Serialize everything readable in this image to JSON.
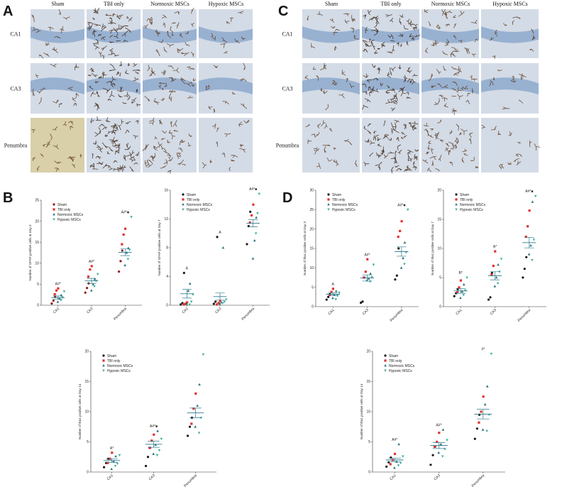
{
  "figure": {
    "panel_labels": [
      "A",
      "B",
      "C",
      "D"
    ],
    "micrographs": [
      {
        "columns": [
          "Sham",
          "TBI only",
          "Normoxic MSCs",
          "Hypoxic MSCs"
        ],
        "rows": [
          "CA1",
          "CA3",
          "Penumbra"
        ]
      },
      {
        "columns": [
          "Sham",
          "TBI only",
          "Normoxic MSCs",
          "Hypoxic MSCs"
        ],
        "rows": [
          "CA1",
          "CA3",
          "Penumbra"
        ]
      }
    ]
  },
  "chart_data": [
    {
      "type": "dotplot",
      "y_label": "Number of GFAP positive cells at Day 3",
      "categories": [
        "CA1",
        "CA3",
        "Penumbra"
      ],
      "ylim": [
        0,
        25
      ],
      "yticks": [
        0,
        5,
        10,
        15,
        20,
        25
      ],
      "legend": "upper left",
      "mean_color": "#2b7a8c",
      "series": [
        {
          "name": "Sham",
          "color": "#8b1a1a",
          "marker": "circle",
          "values": [
            [
              0.4,
              1.1,
              2.0
            ],
            [
              3.0,
              4.1,
              5.2
            ],
            [
              8.0,
              10.5,
              13.0
            ]
          ]
        },
        {
          "name": "TBI only",
          "color": "#e0322f",
          "marker": "square",
          "values": [
            [
              2.6,
              3.5,
              4.0
            ],
            [
              6.8,
              8.5,
              9.3
            ],
            [
              14.5,
              16.8,
              18.2
            ]
          ]
        },
        {
          "name": "Normoxic MSCs",
          "color": "#2e6f7e",
          "marker": "triangle",
          "values": [
            [
              0.8,
              1.6,
              2.4
            ],
            [
              3.5,
              5.0,
              6.2
            ],
            [
              9.5,
              12.5,
              13.6
            ]
          ]
        },
        {
          "name": "Hypoxic MSCs",
          "color": "#3fb0a0",
          "marker": "triangle-down",
          "values": [
            [
              1.2,
              1.9,
              3.3
            ],
            [
              4.5,
              5.8,
              7.4
            ],
            [
              11.0,
              13.2,
              21.0
            ]
          ]
        }
      ],
      "means": [
        1.8,
        5.8,
        12.6
      ],
      "errors": [
        0.4,
        0.6,
        0.8
      ],
      "annotations": [
        "A#*",
        "A#*",
        "A#*■"
      ]
    },
    {
      "type": "dotplot",
      "y_label": "Number of GFAP positive cells at Day 7",
      "categories": [
        "CA1",
        "CA3",
        "Penumbra"
      ],
      "ylim": [
        0,
        16
      ],
      "yticks": [
        0,
        4,
        8,
        12,
        16
      ],
      "legend": "upper left",
      "mean_color": "#2b7a8c",
      "series": [
        {
          "name": "Sham",
          "color": "#1a1a1a",
          "marker": "circle",
          "values": [
            [
              0.1,
              0.3,
              4.5
            ],
            [
              0.2,
              0.5,
              9.5
            ],
            [
              8.5,
              11.0,
              13.0
            ]
          ]
        },
        {
          "name": "TBI only",
          "color": "#e0322f",
          "marker": "square",
          "values": [
            [
              0.1,
              0.2,
              0.4
            ],
            [
              0.1,
              0.3,
              0.6
            ],
            [
              11.5,
              12.5,
              14.0
            ]
          ]
        },
        {
          "name": "Normoxic MSCs",
          "color": "#2e6f7e",
          "marker": "triangle",
          "values": [
            [
              0.2,
              2.0,
              3.0
            ],
            [
              0.2,
              0.4,
              8.0
            ],
            [
              6.5,
              9.0,
              12.2
            ]
          ]
        },
        {
          "name": "Hypoxic MSCs",
          "color": "#3fb0a0",
          "marker": "triangle-down",
          "values": [
            [
              0.1,
              0.5,
              1.5
            ],
            [
              0.3,
              0.5,
              0.8
            ],
            [
              10.0,
              12.8,
              15.5
            ]
          ]
        }
      ],
      "means": [
        1.6,
        1.2,
        11.4
      ],
      "errors": [
        0.6,
        0.5,
        0.5
      ],
      "annotations": [
        "A",
        "A",
        "A#*■"
      ]
    },
    {
      "type": "dotplot",
      "y_label": "Number of Iba1 positive cells at Day 3",
      "categories": [
        "CA1",
        "CA3",
        "Penumbra"
      ],
      "ylim": [
        0,
        30
      ],
      "yticks": [
        0,
        5,
        10,
        15,
        20,
        25,
        30
      ],
      "legend": "upper left",
      "mean_color": "#2b7a8c",
      "series": [
        {
          "name": "Sham",
          "color": "#1a1a1a",
          "marker": "circle",
          "values": [
            [
              1.8,
              2.5,
              3.2
            ],
            [
              1.0,
              1.3,
              7.5
            ],
            [
              7.0,
              8.0,
              15.0
            ]
          ]
        },
        {
          "name": "TBI only",
          "color": "#e0322f",
          "marker": "square",
          "values": [
            [
              3.0,
              3.8,
              4.6
            ],
            [
              7.5,
              9.0,
              12.2
            ],
            [
              18.0,
              19.5,
              22.0
            ]
          ]
        },
        {
          "name": "Normoxic MSCs",
          "color": "#2e6f7e",
          "marker": "triangle",
          "values": [
            [
              2.2,
              3.0,
              4.0
            ],
            [
              6.8,
              7.2,
              8.5
            ],
            [
              10.0,
              12.5,
              16.5
            ]
          ]
        },
        {
          "name": "Hypoxic MSCs",
          "color": "#3fb0a0",
          "marker": "triangle-down",
          "values": [
            [
              1.9,
              2.8,
              3.6
            ],
            [
              6.5,
              7.6,
              10.8
            ],
            [
              11.0,
              14.0,
              25.0
            ]
          ]
        }
      ],
      "means": [
        3.2,
        7.4,
        14.2
      ],
      "errors": [
        0.4,
        0.8,
        1.2
      ],
      "annotations": [
        "A",
        "A#*",
        "A#*■"
      ]
    },
    {
      "type": "dotplot",
      "y_label": "Number of Iba1 positive cells at Day 7",
      "categories": [
        "CA1",
        "CA3",
        "Penumbra"
      ],
      "ylim": [
        0,
        20
      ],
      "yticks": [
        0,
        5,
        10,
        15,
        20
      ],
      "legend": "upper left",
      "mean_color": "#2b7a8c",
      "series": [
        {
          "name": "Sham",
          "color": "#1a1a1a",
          "marker": "circle",
          "values": [
            [
              1.8,
              2.3,
              3.0
            ],
            [
              1.2,
              1.6,
              5.8
            ],
            [
              5.0,
              6.5,
              8.5
            ]
          ]
        },
        {
          "name": "TBI only",
          "color": "#e0322f",
          "marker": "square",
          "values": [
            [
              2.5,
              3.3,
              4.5
            ],
            [
              5.5,
              7.0,
              9.5
            ],
            [
              12.0,
              13.8,
              16.5
            ]
          ]
        },
        {
          "name": "Normoxic MSCs",
          "color": "#2e6f7e",
          "marker": "triangle",
          "values": [
            [
              1.5,
              2.6,
              3.8
            ],
            [
              3.5,
              5.0,
              7.2
            ],
            [
              9.0,
              10.5,
              18.0
            ]
          ]
        },
        {
          "name": "Hypoxic MSCs",
          "color": "#3fb0a0",
          "marker": "triangle-down",
          "values": [
            [
              2.0,
              2.8,
              5.0
            ],
            [
              4.0,
              6.0,
              8.2
            ],
            [
              8.0,
              11.5,
              19.0
            ]
          ]
        }
      ],
      "means": [
        2.7,
        5.3,
        11.0
      ],
      "errors": [
        0.4,
        0.7,
        0.9
      ],
      "annotations": [
        "B*",
        "A*",
        "A#*■"
      ]
    },
    {
      "type": "dotplot",
      "y_label": "Number of Iba1 positive cells at Day 14",
      "categories": [
        "CA1",
        "CA3",
        "Penumbra"
      ],
      "ylim": [
        0,
        20
      ],
      "yticks": [
        0,
        5,
        10,
        15,
        20
      ],
      "legend": "upper left",
      "mean_color": "#2b7a8c",
      "series": [
        {
          "name": "Sham",
          "color": "#1a1a1a",
          "marker": "circle",
          "values": [
            [
              0.8,
              1.5,
              2.2
            ],
            [
              1.0,
              2.5,
              4.0
            ],
            [
              6.0,
              7.5,
              9.0
            ]
          ]
        },
        {
          "name": "TBI only",
          "color": "#e0322f",
          "marker": "square",
          "values": [
            [
              1.5,
              2.2,
              3.2
            ],
            [
              4.0,
              5.2,
              6.2
            ],
            [
              8.0,
              10.5,
              13.0
            ]
          ]
        },
        {
          "name": "Normoxic MSCs",
          "color": "#2e6f7e",
          "marker": "triangle",
          "values": [
            [
              0.5,
              1.8,
              2.6
            ],
            [
              3.0,
              4.5,
              6.8
            ],
            [
              7.5,
              11.0,
              14.5
            ]
          ]
        },
        {
          "name": "Hypoxic MSCs",
          "color": "#3fb0a0",
          "marker": "triangle-down",
          "values": [
            [
              1.0,
              1.4,
              2.8
            ],
            [
              2.8,
              3.6,
              5.5
            ],
            [
              6.5,
              9.0,
              19.5
            ]
          ]
        }
      ],
      "means": [
        1.9,
        4.6,
        9.8
      ],
      "errors": [
        0.3,
        0.5,
        0.8
      ],
      "annotations": [
        "A*",
        "A#*■",
        null
      ]
    },
    {
      "type": "dotplot",
      "y_label": "Number of Iba1 positive cells at Day 14",
      "categories": [
        "CA1",
        "CA3",
        "Penumbra"
      ],
      "ylim": [
        0,
        20
      ],
      "yticks": [
        0,
        5,
        10,
        15,
        20
      ],
      "legend": "upper left",
      "mean_color": "#2b7a8c",
      "series": [
        {
          "name": "Sham",
          "color": "#1a1a1a",
          "marker": "circle",
          "values": [
            [
              0.9,
              1.6,
              2.4
            ],
            [
              1.2,
              2.8,
              4.2
            ],
            [
              5.5,
              7.2,
              9.5
            ]
          ]
        },
        {
          "name": "TBI only",
          "color": "#e0322f",
          "marker": "square",
          "values": [
            [
              1.3,
              2.0,
              3.0
            ],
            [
              4.2,
              5.0,
              6.5
            ],
            [
              8.2,
              10.0,
              12.5
            ]
          ]
        },
        {
          "name": "Normoxic MSCs",
          "color": "#2e6f7e",
          "marker": "triangle",
          "values": [
            [
              0.7,
              1.7,
              4.6
            ],
            [
              3.2,
              4.6,
              7.0
            ],
            [
              7.0,
              11.2,
              14.2
            ]
          ]
        },
        {
          "name": "Hypoxic MSCs",
          "color": "#3fb0a0",
          "marker": "triangle-down",
          "values": [
            [
              1.1,
              1.5,
              2.6
            ],
            [
              2.6,
              3.8,
              5.3
            ],
            [
              6.8,
              9.5,
              19.6
            ]
          ]
        }
      ],
      "means": [
        2.0,
        4.4,
        9.6
      ],
      "errors": [
        0.3,
        0.5,
        0.8
      ],
      "annotations": [
        "A#*",
        "A#*",
        "#*"
      ]
    }
  ]
}
